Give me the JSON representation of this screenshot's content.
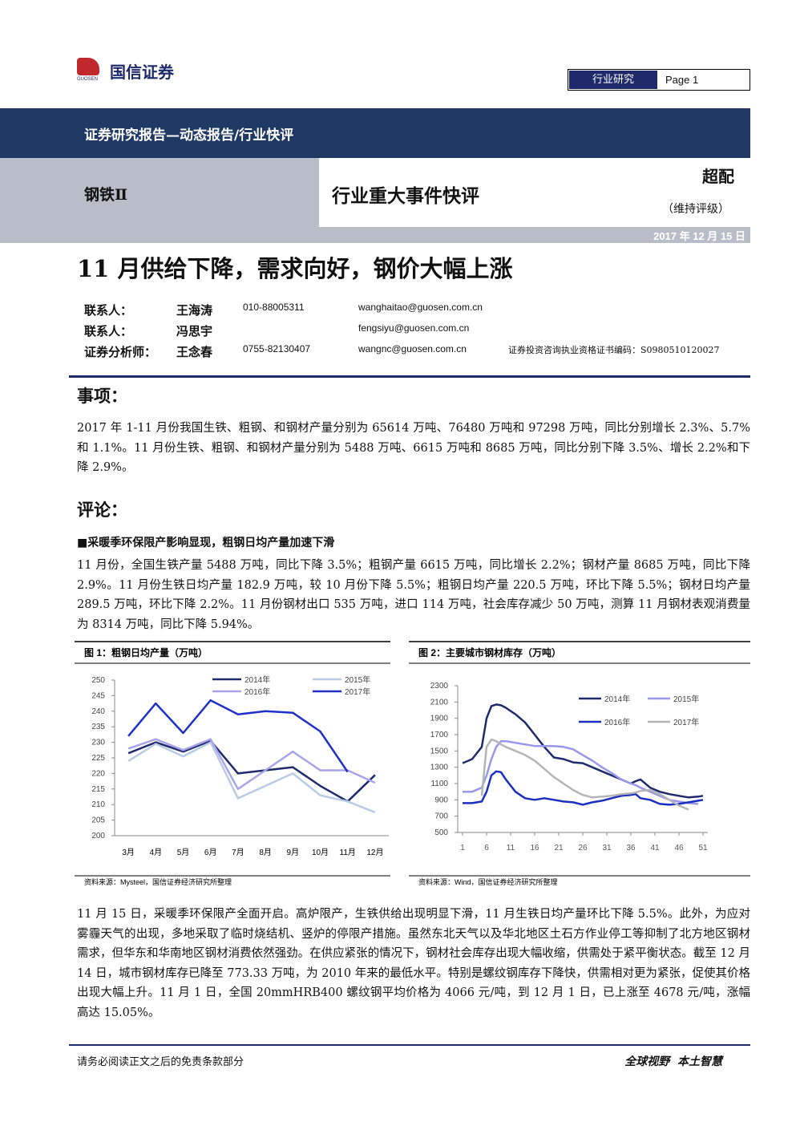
{
  "header": {
    "logo": "国信证券",
    "logo_sub": "GUOSEN",
    "tag": "行业研究",
    "page": "Page 1"
  },
  "banner": "证券研究报告—动态报告/行业快评",
  "sector": "钢铁Ⅱ",
  "report_type": "行业重大事件快评",
  "rating": "超配",
  "rating_note": "（维持评级）",
  "date": "2017 年 12 月 15 日",
  "title": "11 月供给下降，需求向好，钢价大幅上涨",
  "contacts": [
    [
      "联系人：",
      "王海涛",
      "010-88005311",
      "wanghaitao@guosen.com.cn"
    ],
    [
      "联系人：",
      "冯思宇",
      "fengsiyu@guosen.com.cn"
    ],
    [
      "证券分析师：",
      "王念春",
      "0755-82130407",
      "wangnc@guosen.com.cn",
      "证券投资咨询执业资格证书编码：S0980510120027"
    ]
  ],
  "matter": {
    "heading": "事项：",
    "text": "2017 年 1-11 月份我国生铁、粗钢、和钢材产量分别为 65614 万吨、76480 万吨和 97298 万吨，同比分别增长 2.3%、5.7%和 1.1%。11 月份生铁、粗钢、和钢材产量分别为 5488 万吨、6615 万吨和 8685 万吨，同比分别下降 3.5%、增长 2.2%和下降 2.9%。"
  },
  "comment": {
    "heading": "评论：",
    "subheading": "■采暖季环保限产影响显现，粗钢日均产量加速下滑",
    "para1": "11 月份，全国生铁产量 5488 万吨，同比下降 3.5%；粗钢产量 6615 万吨，同比增长 2.2%；钢材产量 8685 万吨，同比下降 2.9%。11 月份生铁日均产量 182.9 万吨，较 10 月份下降 5.5%；粗钢日均产量 220.5 万吨，环比下降 5.5%；钢材日均产量 289.5 万吨，环比下降 2.2%。11 月份钢材出口 535 万吨，进口 114 万吨，社会库存减少 50 万吨，测算 11 月钢材表观消费量为 8314 万吨，同比下降 5.94%。",
    "para2": "11 月 15 日，采暖季环保限产全面开启。高炉限产，生铁供给出现明显下滑，11 月生铁日均产量环比下降 5.5%。此外，为应对雾霾天气的出现，多地采取了临时烧结机、竖炉的停限产措施。虽然东北天气以及华北地区土石方作业停工等抑制了北方地区钢材需求，但华东和华南地区钢材消费依然强劲。在供应紧张的情况下，钢材社会库存出现大幅收缩，供需处于紧平衡状态。截至 12 月 14 日，城市钢材库存已降至 773.33 万吨，为 2010 年来的最低水平。特别是螺纹钢库存下降快，供需相对更为紧张，促使其价格出现大幅上升。11 月 1 日，全国 20mmHRB400 螺纹钢平均价格为 4066 元/吨，到 12 月 1 日，已上涨至 4678 元/吨，涨幅高达 15.05%。"
  },
  "footer": {
    "left": "请务必阅读正文之后的免责条款部分",
    "right": "全球视野  本土智慧"
  },
  "chart_data": [
    {
      "type": "line",
      "title": "图 1：粗钢日均产量（万吨）",
      "source": "资料来源：Mysteel，国信证券经济研究所整理",
      "categories": [
        "3月",
        "4月",
        "5月",
        "6月",
        "7月",
        "8月",
        "9月",
        "10月",
        "11月",
        "12月"
      ],
      "ylim": [
        200,
        250
      ],
      "yticks": [
        200,
        205,
        210,
        215,
        220,
        225,
        230,
        235,
        240,
        245,
        250
      ],
      "series": [
        {
          "name": "2014年",
          "color": "#1f2a6b",
          "values": [
            226.5,
            230,
            227,
            230.5,
            220,
            221,
            222,
            216,
            211,
            219.5
          ]
        },
        {
          "name": "2015年",
          "color": "#b9cbe4",
          "values": [
            224,
            229.5,
            225.5,
            230,
            212,
            216,
            220,
            213,
            211,
            207.5
          ]
        },
        {
          "name": "2016年",
          "color": "#a9a3ea",
          "values": [
            228,
            231,
            227.5,
            231,
            215,
            221,
            227,
            221,
            221,
            217
          ]
        },
        {
          "name": "2017年",
          "color": "#2030c8",
          "values": [
            232,
            242.5,
            233,
            243.5,
            239,
            240,
            239.5,
            233.5,
            220.5,
            null
          ]
        }
      ]
    },
    {
      "type": "line",
      "title": "图 2：主要城市钢材库存（万吨）",
      "source": "资料来源：Wind，国信证券经济研究所整理",
      "x": [
        1,
        3,
        5,
        6,
        7,
        8,
        9,
        10,
        12,
        14,
        16,
        18,
        20,
        22,
        24,
        26,
        28,
        30,
        32,
        34,
        36,
        37,
        38,
        40,
        42,
        44,
        46,
        48,
        50,
        51
      ],
      "xlim": [
        0,
        52
      ],
      "xticks": [
        1,
        6,
        11,
        16,
        21,
        26,
        31,
        36,
        41,
        46,
        51
      ],
      "ylim": [
        500,
        2300
      ],
      "yticks": [
        500,
        700,
        900,
        1100,
        1300,
        1500,
        1700,
        1900,
        2100,
        2300
      ],
      "series": [
        {
          "name": "2014年",
          "color": "#1f2a6b",
          "values": [
            1350,
            1400,
            1550,
            1900,
            2050,
            2070,
            2060,
            2030,
            1950,
            1850,
            1700,
            1550,
            1420,
            1400,
            1360,
            1350,
            1300,
            1250,
            1200,
            1150,
            1100,
            1130,
            1150,
            1050,
            1000,
            970,
            950,
            930,
            940,
            950
          ]
        },
        {
          "name": "2015年",
          "color": "#9a97ea",
          "values": [
            1000,
            1000,
            1050,
            1200,
            1400,
            1550,
            1620,
            1620,
            1600,
            1580,
            1560,
            1560,
            1560,
            1550,
            1520,
            1450,
            1380,
            1300,
            1230,
            1150,
            1100,
            1080,
            1050,
            1000,
            950,
            900,
            880,
            860,
            850,
            null
          ]
        },
        {
          "name": "2016年",
          "color": "#1a2fbf",
          "values": [
            860,
            860,
            880,
            1000,
            1200,
            1250,
            1240,
            1150,
            1000,
            920,
            900,
            920,
            900,
            880,
            870,
            840,
            870,
            890,
            920,
            950,
            960,
            970,
            920,
            900,
            850,
            840,
            850,
            870,
            890,
            900
          ]
        },
        {
          "name": "2017年",
          "color": "#b5b5b5",
          "values": [
            null,
            null,
            950,
            1550,
            1640,
            1620,
            1580,
            1550,
            1500,
            1450,
            1380,
            1280,
            1180,
            1100,
            1020,
            960,
            930,
            940,
            950,
            970,
            980,
            990,
            1010,
            1020,
            970,
            900,
            830,
            780,
            null,
            null
          ]
        }
      ]
    }
  ]
}
